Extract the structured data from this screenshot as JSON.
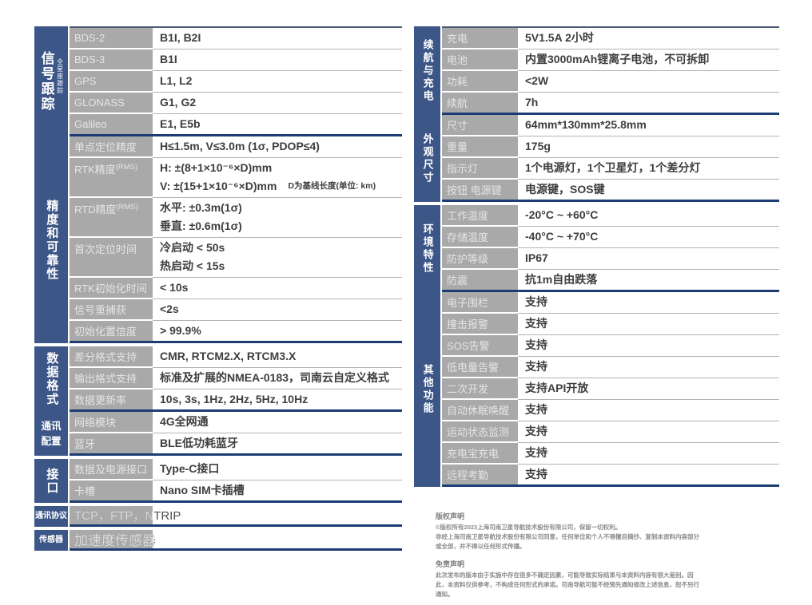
{
  "colors": {
    "sidebar_blue": "#3b5687",
    "divider_navy": "#1e3c74",
    "label_cell_gray": "#a9a9a9",
    "label_text": "#e5e5e5",
    "value_text": "#3e3e3e"
  },
  "left": {
    "sections": [
      {
        "category": "信号跟踪",
        "category_sub": "全星座跟踪",
        "cat_style": "vlg",
        "gap_before": false,
        "rows": [
          {
            "label": "BDS-2",
            "value": "B1I, B2I"
          },
          {
            "label": "BDS-3",
            "value": "B1I"
          },
          {
            "label": "GPS",
            "value": "L1, L2"
          },
          {
            "label": "GLONASS",
            "value": "G1, G2"
          },
          {
            "label": "Galileo",
            "value": "E1, E5b"
          }
        ]
      },
      {
        "category": "精度和可靠性",
        "cat_style": "vert",
        "gap_before": false,
        "rows": [
          {
            "label": "单点定位精度",
            "value": "H≤1.5m, V≤3.0m (1σ, PDOP≤4)"
          },
          {
            "label": "RTK精度",
            "label_sub": "(RMS)",
            "multi": true,
            "value": "H: ±(8+1×10⁻⁶×D)mm\nV: ±(15+1×10⁻⁶×D)mm",
            "note": "D为基线长度(单位: km)"
          },
          {
            "label": "RTD精度",
            "label_sub": "(RMS)",
            "multi": true,
            "value": "水平: ±0.3m(1σ)\n垂直: ±0.6m(1σ)"
          },
          {
            "label": "首次定位时间",
            "multi": true,
            "value": "冷启动 < 50s\n热启动 < 15s"
          },
          {
            "label": "RTK初始化时间",
            "value": "< 10s"
          },
          {
            "label": "信号重捕获",
            "value": "<2s"
          },
          {
            "label": "初始化置信度",
            "value": "> 99.9%"
          }
        ]
      },
      {
        "category": "数据格式",
        "cat_style": "vert",
        "gap_before": true,
        "rows": [
          {
            "label": "差分格式支持",
            "value": "CMR, RTCM2.X, RTCM3.X"
          },
          {
            "label": "输出格式支持",
            "value": "标准及扩展的NMEA-0183，司南云自定义格式"
          },
          {
            "label": "数据更新率",
            "value": "10s, 3s, 1Hz, 2Hz, 5Hz, 10Hz"
          }
        ]
      },
      {
        "category": "通讯配置",
        "cat_style": "two",
        "gap_before": false,
        "rows": [
          {
            "label": "网络模块",
            "value": "4G全网通"
          },
          {
            "label": "蓝牙",
            "value": "BLE低功耗蓝牙"
          }
        ]
      },
      {
        "category": "接口",
        "cat_style": "vert",
        "gap_before": true,
        "rows": [
          {
            "label": "数据及电源接口",
            "value": "Type-C接口"
          },
          {
            "label": "卡槽",
            "value": "Nano SIM卡插槽"
          }
        ]
      },
      {
        "category": "通讯协议",
        "cat_style": "horiz",
        "gap_before": true,
        "rows": [
          {
            "full": true,
            "value": "TCP，FTP，NTRIP"
          }
        ]
      },
      {
        "category": "传感器",
        "cat_style": "horiz",
        "gap_before": true,
        "rows": [
          {
            "full": true,
            "size": "lg",
            "value": "加速度传感器"
          }
        ]
      }
    ]
  },
  "right": {
    "sections": [
      {
        "category": "续航与充电",
        "cat_style": "vert",
        "gap_before": false,
        "rows": [
          {
            "label": "充电",
            "value": "5V1.5A 2小时"
          },
          {
            "label": "电池",
            "value": "内置3000mAh锂离子电池，不可拆卸"
          },
          {
            "label": "功耗",
            "value": "<2W"
          },
          {
            "label": "续航",
            "value": "7h"
          }
        ]
      },
      {
        "category": "外观尺寸",
        "cat_style": "vert",
        "gap_before": false,
        "rows": [
          {
            "label": "尺寸",
            "value": "64mm*130mm*25.8mm"
          },
          {
            "label": "重量",
            "value": "175g"
          },
          {
            "label": "指示灯",
            "value": "1个电源灯，1个卫星灯，1个差分灯"
          },
          {
            "label": "按钮 电源键",
            "value": "电源键，SOS键"
          }
        ]
      },
      {
        "category": "环境特性",
        "cat_style": "vert",
        "gap_before": true,
        "rows": [
          {
            "label": "工作温度",
            "value": "-20°C ~ +60°C"
          },
          {
            "label": "存储温度",
            "value": "-40°C ~ +70°C"
          },
          {
            "label": "防护等级",
            "value": "IP67"
          },
          {
            "label": "防震",
            "value": "抗1m自由跌落"
          }
        ]
      },
      {
        "category": "其他功能",
        "cat_style": "vert",
        "gap_before": false,
        "rows": [
          {
            "label": "电子围栏",
            "value": "支持"
          },
          {
            "label": "撞击报警",
            "value": "支持"
          },
          {
            "label": "SOS告警",
            "value": "支持"
          },
          {
            "label": "低电量告警",
            "value": "支持"
          },
          {
            "label": "二次开发",
            "value": "支持API开放"
          },
          {
            "label": "自动休眠唤醒",
            "value": "支持"
          },
          {
            "label": "运动状态监测",
            "value": "支持"
          },
          {
            "label": "充电宝充电",
            "value": "支持"
          },
          {
            "label": "远程考勤",
            "value": "支持"
          }
        ]
      }
    ]
  },
  "legal": {
    "copyright_title": "版权声明",
    "copyright_text": "©版权所有2023上海司南卫星导航技术股份有限公司，保留一切权利。\n非经上海司南卫星导航技术股份有限公司同意，任何单位和个人不得擅自摘抄、复制本资料内容部分或全部，并不得以任何形式传播。",
    "disclaimer_title": "免责声明",
    "disclaimer_text": "此次发布的版本由于实施中存在很多不确定因素，可能导致实际结果与本资料内容有很大差别。因此，本资料仅供参考，不构成任何形式的承诺。司南导航可能不经预先通知修改上述信息，恕不另行通知。"
  }
}
